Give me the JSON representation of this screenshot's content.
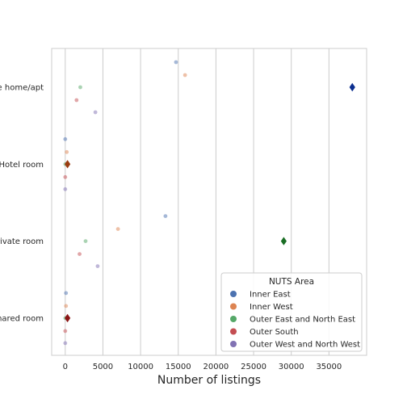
{
  "chart_data": {
    "type": "scatter",
    "xlabel": "Number of listings",
    "ylabel": "",
    "xlim": [
      -1800,
      40000
    ],
    "x_ticks": [
      0,
      5000,
      10000,
      15000,
      20000,
      25000,
      30000,
      35000
    ],
    "x_tick_labels": [
      "0",
      "5000",
      "10000",
      "15000",
      "20000",
      "25000",
      "30000",
      "35000"
    ],
    "grid": "vertical",
    "categories": [
      "e home/apt",
      "Hotel room",
      "rivate room",
      "hared room"
    ],
    "legend": {
      "title": "NUTS Area",
      "placement": "lower-right",
      "entries": [
        {
          "name": "Inner East",
          "color": "#4c72b0"
        },
        {
          "name": "Inner West",
          "color": "#dd8452"
        },
        {
          "name": "Outer East and North East",
          "color": "#55a868"
        },
        {
          "name": "Outer South",
          "color": "#c44e52"
        },
        {
          "name": "Outer West and North West",
          "color": "#8172b3"
        }
      ]
    },
    "series": [
      {
        "name": "Inner East",
        "color": "#4c72b0",
        "values": [
          14700,
          0,
          13300,
          100
        ]
      },
      {
        "name": "Inner West",
        "color": "#dd8452",
        "values": [
          15900,
          200,
          7000,
          100
        ]
      },
      {
        "name": "Outer East and North East",
        "color": "#55a868",
        "values": [
          2000,
          0,
          2700,
          0
        ]
      },
      {
        "name": "Outer South",
        "color": "#c44e52",
        "values": [
          1500,
          0,
          1900,
          0
        ]
      },
      {
        "name": "Outer West and North West",
        "color": "#8172b3",
        "values": [
          4000,
          0,
          4300,
          0
        ]
      }
    ],
    "totals": {
      "values": [
        38100,
        300,
        29000,
        300
      ],
      "colors": [
        "#0b2e8f",
        "#9a3c10",
        "#1a6e24",
        "#8b1515"
      ]
    }
  }
}
